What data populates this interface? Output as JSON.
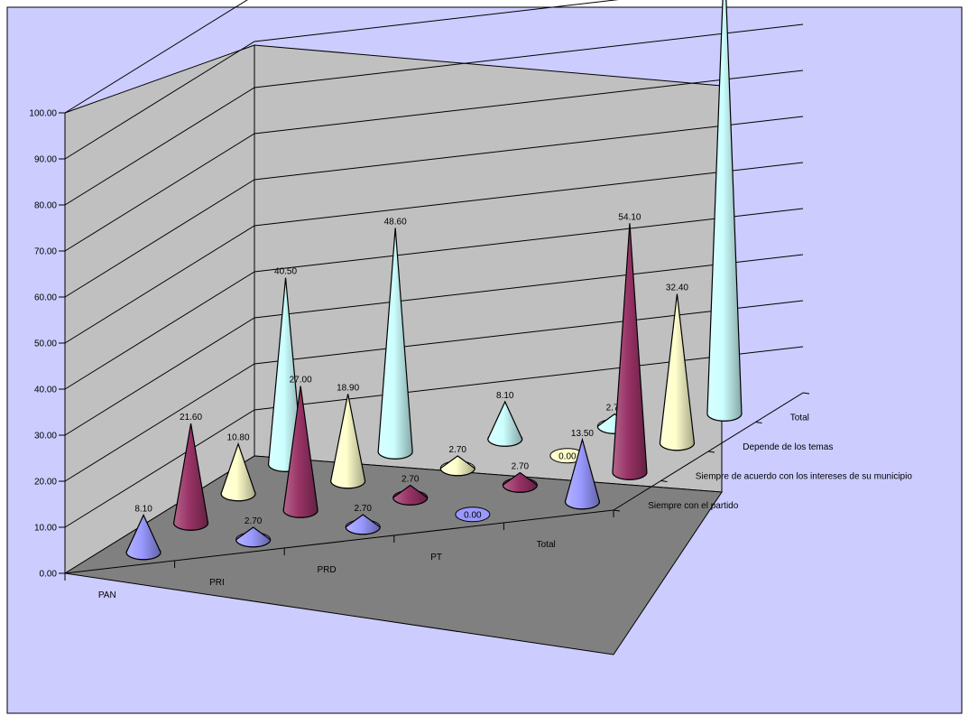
{
  "chart_data": {
    "type": "3d-cone",
    "title": "",
    "categories": [
      "PAN",
      "PRI",
      "PRD",
      "PT",
      "Total"
    ],
    "series": [
      {
        "name": "Siempre con el partido",
        "color": "#9999ff",
        "values": [
          8.1,
          2.7,
          2.7,
          0.0,
          13.5
        ]
      },
      {
        "name": "Siempre de acuerdo con los intereses de su municipio",
        "color": "#993366",
        "values": [
          21.6,
          27.0,
          2.7,
          2.7,
          54.1
        ]
      },
      {
        "name": "Depende de los temas",
        "color": "#ffffcc",
        "values": [
          10.8,
          18.9,
          2.7,
          0.0,
          32.4
        ]
      },
      {
        "name": "Total",
        "color": "#ccffff",
        "values": [
          40.5,
          48.6,
          8.1,
          2.7,
          100.0
        ]
      }
    ],
    "ylim": [
      0,
      100
    ],
    "yticks": [
      "0.00",
      "10.00",
      "20.00",
      "30.00",
      "40.00",
      "50.00",
      "60.00",
      "70.00",
      "80.00",
      "90.00",
      "100.00"
    ],
    "depth_labels": [
      "Siempre con el partido",
      "Siempre de acuerdo con los intereses de su municipio",
      "Depende de los temas",
      "Total"
    ],
    "colors": {
      "background": "#ccccff",
      "walls": "#c0c0c0",
      "floor": "#808080"
    }
  }
}
